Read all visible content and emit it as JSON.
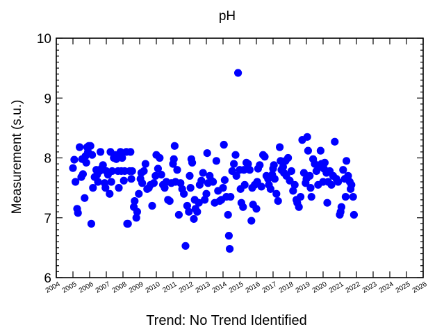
{
  "chart_data": {
    "type": "scatter",
    "title": "pH",
    "xlabel": "",
    "ylabel": "Measurement (s.u.)",
    "footer": "Trend: No Trend Identified",
    "xlim": [
      2004,
      2026
    ],
    "ylim": [
      6,
      10
    ],
    "x_ticks": [
      "2004",
      "2005",
      "2006",
      "2007",
      "2008",
      "2009",
      "2010",
      "2011",
      "2012",
      "2013",
      "2014",
      "2015",
      "2016",
      "2017",
      "2018",
      "2019",
      "2020",
      "2021",
      "2022",
      "2023",
      "2024",
      "2025",
      "2026"
    ],
    "y_ticks": [
      "6",
      "7",
      "8",
      "9",
      "10"
    ],
    "marker_color": "#0000ff",
    "grid": false,
    "points": [
      [
        2005.0,
        7.83
      ],
      [
        2005.08,
        7.97
      ],
      [
        2005.15,
        7.6
      ],
      [
        2005.25,
        7.15
      ],
      [
        2005.3,
        7.08
      ],
      [
        2005.4,
        8.18
      ],
      [
        2005.5,
        7.68
      ],
      [
        2005.55,
        7.98
      ],
      [
        2005.6,
        7.73
      ],
      [
        2005.7,
        7.33
      ],
      [
        2005.75,
        8.03
      ],
      [
        2005.8,
        7.92
      ],
      [
        2005.85,
        8.18
      ],
      [
        2005.9,
        8.1
      ],
      [
        2005.95,
        8.2
      ],
      [
        2006.05,
        8.2
      ],
      [
        2006.1,
        6.9
      ],
      [
        2006.15,
        8.05
      ],
      [
        2006.2,
        7.5
      ],
      [
        2006.3,
        7.68
      ],
      [
        2006.4,
        7.8
      ],
      [
        2006.45,
        7.72
      ],
      [
        2006.5,
        7.6
      ],
      [
        2006.6,
        7.78
      ],
      [
        2006.65,
        8.1
      ],
      [
        2006.7,
        7.82
      ],
      [
        2006.8,
        7.88
      ],
      [
        2006.9,
        7.58
      ],
      [
        2006.95,
        7.5
      ],
      [
        2007.0,
        7.78
      ],
      [
        2007.1,
        7.72
      ],
      [
        2007.2,
        7.4
      ],
      [
        2007.25,
        8.1
      ],
      [
        2007.3,
        7.6
      ],
      [
        2007.35,
        7.78
      ],
      [
        2007.45,
        8.0
      ],
      [
        2007.55,
        8.05
      ],
      [
        2007.6,
        7.98
      ],
      [
        2007.7,
        7.78
      ],
      [
        2007.75,
        7.5
      ],
      [
        2007.85,
        8.1
      ],
      [
        2007.9,
        7.78
      ],
      [
        2007.95,
        8.0
      ],
      [
        2008.05,
        7.62
      ],
      [
        2008.1,
        7.78
      ],
      [
        2008.2,
        8.1
      ],
      [
        2008.25,
        6.9
      ],
      [
        2008.3,
        6.9
      ],
      [
        2008.4,
        7.78
      ],
      [
        2008.45,
        8.1
      ],
      [
        2008.5,
        7.65
      ],
      [
        2008.55,
        7.78
      ],
      [
        2008.65,
        7.18
      ],
      [
        2008.7,
        7.28
      ],
      [
        2008.8,
        7.0
      ],
      [
        2008.85,
        7.1
      ],
      [
        2008.95,
        7.4
      ],
      [
        2009.05,
        7.65
      ],
      [
        2009.1,
        7.75
      ],
      [
        2009.15,
        7.58
      ],
      [
        2009.25,
        7.78
      ],
      [
        2009.35,
        7.9
      ],
      [
        2009.45,
        7.48
      ],
      [
        2009.55,
        7.5
      ],
      [
        2009.65,
        7.55
      ],
      [
        2009.75,
        7.2
      ],
      [
        2009.85,
        7.58
      ],
      [
        2009.95,
        7.7
      ],
      [
        2010.0,
        8.05
      ],
      [
        2010.1,
        7.82
      ],
      [
        2010.2,
        8.0
      ],
      [
        2010.3,
        7.72
      ],
      [
        2010.4,
        7.55
      ],
      [
        2010.5,
        7.5
      ],
      [
        2010.6,
        7.6
      ],
      [
        2010.7,
        7.3
      ],
      [
        2010.8,
        7.28
      ],
      [
        2010.9,
        7.58
      ],
      [
        2011.0,
        7.9
      ],
      [
        2011.05,
        7.98
      ],
      [
        2011.1,
        8.2
      ],
      [
        2011.15,
        7.6
      ],
      [
        2011.25,
        7.8
      ],
      [
        2011.35,
        7.05
      ],
      [
        2011.45,
        7.58
      ],
      [
        2011.55,
        7.48
      ],
      [
        2011.65,
        7.4
      ],
      [
        2011.75,
        6.53
      ],
      [
        2011.85,
        7.2
      ],
      [
        2011.95,
        7.1
      ],
      [
        2012.0,
        7.7
      ],
      [
        2012.05,
        7.5
      ],
      [
        2012.1,
        7.98
      ],
      [
        2012.15,
        7.92
      ],
      [
        2012.25,
        6.98
      ],
      [
        2012.3,
        7.3
      ],
      [
        2012.35,
        7.15
      ],
      [
        2012.45,
        7.1
      ],
      [
        2012.55,
        7.25
      ],
      [
        2012.6,
        7.55
      ],
      [
        2012.7,
        7.62
      ],
      [
        2012.8,
        7.75
      ],
      [
        2012.9,
        7.3
      ],
      [
        2013.0,
        7.4
      ],
      [
        2013.05,
        8.08
      ],
      [
        2013.1,
        7.58
      ],
      [
        2013.2,
        7.7
      ],
      [
        2013.3,
        7.62
      ],
      [
        2013.4,
        7.6
      ],
      [
        2013.5,
        7.25
      ],
      [
        2013.6,
        7.95
      ],
      [
        2013.7,
        7.45
      ],
      [
        2013.8,
        7.28
      ],
      [
        2013.9,
        7.3
      ],
      [
        2014.0,
        7.5
      ],
      [
        2014.05,
        8.22
      ],
      [
        2014.1,
        7.63
      ],
      [
        2014.2,
        7.35
      ],
      [
        2014.3,
        7.05
      ],
      [
        2014.35,
        6.7
      ],
      [
        2014.4,
        6.48
      ],
      [
        2014.45,
        7.35
      ],
      [
        2014.55,
        7.78
      ],
      [
        2014.65,
        7.9
      ],
      [
        2014.75,
        8.05
      ],
      [
        2014.8,
        7.7
      ],
      [
        2014.9,
        9.42
      ],
      [
        2015.0,
        7.8
      ],
      [
        2015.05,
        7.48
      ],
      [
        2015.1,
        7.25
      ],
      [
        2015.2,
        7.18
      ],
      [
        2015.25,
        7.8
      ],
      [
        2015.3,
        7.55
      ],
      [
        2015.4,
        7.92
      ],
      [
        2015.5,
        7.9
      ],
      [
        2015.6,
        7.8
      ],
      [
        2015.7,
        6.95
      ],
      [
        2015.75,
        7.5
      ],
      [
        2015.8,
        7.22
      ],
      [
        2015.9,
        7.55
      ],
      [
        2016.0,
        7.15
      ],
      [
        2016.05,
        7.6
      ],
      [
        2016.1,
        7.82
      ],
      [
        2016.2,
        7.88
      ],
      [
        2016.3,
        7.52
      ],
      [
        2016.4,
        8.05
      ],
      [
        2016.5,
        8.02
      ],
      [
        2016.6,
        7.7
      ],
      [
        2016.7,
        7.65
      ],
      [
        2016.75,
        7.55
      ],
      [
        2016.85,
        7.48
      ],
      [
        2016.95,
        7.72
      ],
      [
        2017.0,
        7.82
      ],
      [
        2017.05,
        7.88
      ],
      [
        2017.1,
        7.65
      ],
      [
        2017.2,
        7.4
      ],
      [
        2017.3,
        7.28
      ],
      [
        2017.4,
        8.18
      ],
      [
        2017.45,
        7.95
      ],
      [
        2017.5,
        7.8
      ],
      [
        2017.6,
        7.85
      ],
      [
        2017.65,
        7.75
      ],
      [
        2017.75,
        7.95
      ],
      [
        2017.8,
        7.7
      ],
      [
        2017.9,
        8.0
      ],
      [
        2018.0,
        7.62
      ],
      [
        2018.1,
        7.78
      ],
      [
        2018.2,
        7.45
      ],
      [
        2018.3,
        7.55
      ],
      [
        2018.4,
        7.3
      ],
      [
        2018.45,
        7.25
      ],
      [
        2018.55,
        7.18
      ],
      [
        2018.65,
        7.35
      ],
      [
        2018.75,
        8.3
      ],
      [
        2018.85,
        7.75
      ],
      [
        2018.95,
        7.58
      ],
      [
        2019.0,
        7.65
      ],
      [
        2019.05,
        8.35
      ],
      [
        2019.1,
        8.12
      ],
      [
        2019.2,
        7.7
      ],
      [
        2019.25,
        7.5
      ],
      [
        2019.3,
        7.35
      ],
      [
        2019.4,
        7.98
      ],
      [
        2019.5,
        7.9
      ],
      [
        2019.6,
        7.78
      ],
      [
        2019.7,
        7.55
      ],
      [
        2019.8,
        7.85
      ],
      [
        2019.85,
        8.12
      ],
      [
        2019.9,
        7.9
      ],
      [
        2020.0,
        7.6
      ],
      [
        2020.05,
        7.82
      ],
      [
        2020.1,
        7.92
      ],
      [
        2020.2,
        7.75
      ],
      [
        2020.25,
        7.25
      ],
      [
        2020.3,
        7.6
      ],
      [
        2020.4,
        7.78
      ],
      [
        2020.5,
        7.55
      ],
      [
        2020.6,
        7.7
      ],
      [
        2020.7,
        8.27
      ],
      [
        2020.8,
        7.65
      ],
      [
        2020.9,
        7.6
      ],
      [
        2021.0,
        7.05
      ],
      [
        2021.05,
        7.1
      ],
      [
        2021.1,
        7.18
      ],
      [
        2021.2,
        7.8
      ],
      [
        2021.3,
        7.65
      ],
      [
        2021.35,
        7.35
      ],
      [
        2021.4,
        7.95
      ],
      [
        2021.5,
        7.7
      ],
      [
        2021.6,
        7.6
      ],
      [
        2021.65,
        7.48
      ],
      [
        2021.7,
        7.55
      ],
      [
        2021.8,
        7.35
      ],
      [
        2021.85,
        7.05
      ]
    ]
  }
}
